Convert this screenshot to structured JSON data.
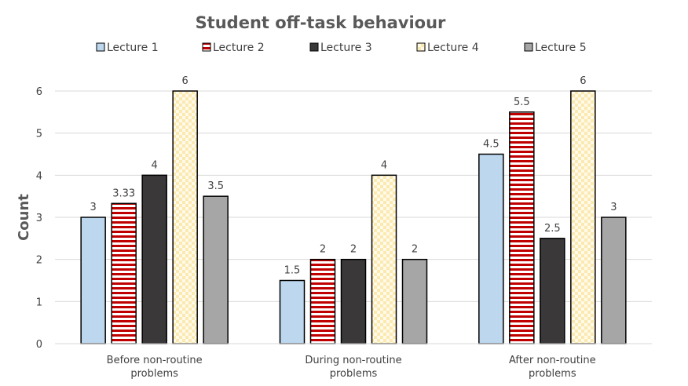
{
  "chart_data": {
    "type": "bar",
    "title": "Student off-task behaviour",
    "xlabel": "",
    "ylabel": "Count",
    "ylim": [
      0,
      6
    ],
    "yticks": [
      "0",
      "1",
      "2",
      "3",
      "4",
      "5",
      "6"
    ],
    "grid": true,
    "legend_position": "top",
    "categories": [
      [
        "Before non-routine",
        "problems"
      ],
      [
        "During non-routine",
        "problems"
      ],
      [
        "After non-routine",
        "problems"
      ]
    ],
    "series": [
      {
        "name": "Lecture 1",
        "values": [
          3,
          1.5,
          4.5
        ],
        "labels": [
          "3",
          "1.5",
          "4.5"
        ],
        "color": "#bdd7ee",
        "pattern": "solid"
      },
      {
        "name": "Lecture 2",
        "values": [
          3.33,
          2,
          5.5
        ],
        "labels": [
          "3.33",
          "2",
          "5.5"
        ],
        "color": "#c00000",
        "pattern": "horizontal-stripes"
      },
      {
        "name": "Lecture 3",
        "values": [
          4,
          2,
          2.5
        ],
        "labels": [
          "4",
          "2",
          "2.5"
        ],
        "color": "#3a3838",
        "pattern": "solid"
      },
      {
        "name": "Lecture 4",
        "values": [
          6,
          4,
          6
        ],
        "labels": [
          "6",
          "4",
          "6"
        ],
        "color": "#fff2cc",
        "pattern": "checker"
      },
      {
        "name": "Lecture 5",
        "values": [
          3.5,
          2,
          3
        ],
        "labels": [
          "3.5",
          "2",
          "3"
        ],
        "color": "#a6a6a6",
        "pattern": "solid"
      }
    ]
  }
}
